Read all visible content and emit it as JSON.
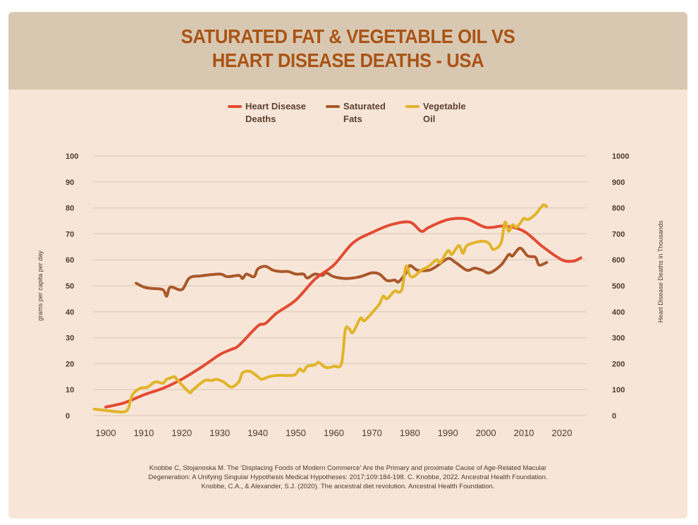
{
  "header": {
    "title_line1": "SATURATED FAT & VEGETABLE OIL VS",
    "title_line2": "HEART DISEASE DEATHS - USA"
  },
  "colors": {
    "heart_disease": "#e34a33",
    "saturated_fats": "#a9582a",
    "vegetable_oil": "#e2b42a",
    "title": "#a95417",
    "header_bg": "#d9c8b1",
    "card_bg": "#f7e6d7",
    "grid": "#e0d0c0"
  },
  "legend": [
    {
      "label": "Heart Disease\nDeaths",
      "series": "heart_disease"
    },
    {
      "label": "Saturated\nFats",
      "series": "saturated_fats"
    },
    {
      "label": "Vegetable\nOil",
      "series": "vegetable_oil"
    }
  ],
  "source": {
    "line1": "Knobbe C, Stojanoska M. The ‘Displacing Foods of Modern Commerce’ Are the Primary and proximate Cause of Age-Related Macular",
    "line2": "Degeneration: A Unifying Singular Hypothesis Medical Hypotheses: 2017;109:184-198. C. Knobbe, 2022. Ancestral Health Foundation.",
    "line3": "Knobbe, C.A., & Alexander, S.J. (2020). The ancestral diet revolution. Ancestral Health Foundation."
  },
  "chart_data": {
    "type": "line",
    "title": "SATURATED FAT & VEGETABLE OIL VS HEART DISEASE DEATHS - USA",
    "xlabel": "",
    "ylabel": "grams per capita per day",
    "y2label": "Heart Disease Deaths in Thousands",
    "xlim": [
      1897,
      2026
    ],
    "ylim": [
      0,
      100
    ],
    "y2lim": [
      0,
      1000
    ],
    "grid": true,
    "legend_position": "top-center",
    "x_ticks": [
      "1900",
      "1910",
      "1920",
      "1930",
      "1940",
      "1950",
      "1960",
      "1970",
      "1980",
      "1990",
      "2000",
      "2010",
      "2020"
    ],
    "y_ticks": [
      "0",
      "10",
      "20",
      "30",
      "40",
      "50",
      "60",
      "70",
      "80",
      "90",
      "100"
    ],
    "y2_ticks": [
      "0",
      "100",
      "200",
      "300",
      "400",
      "500",
      "600",
      "700",
      "800",
      "900",
      "1000"
    ],
    "series": [
      {
        "name": "Heart Disease Deaths",
        "key": "heart_disease",
        "axis": "right",
        "x": [
          1900,
          1905,
          1910,
          1915,
          1920,
          1925,
          1930,
          1933,
          1935,
          1940,
          1942,
          1945,
          1950,
          1955,
          1960,
          1965,
          1970,
          1975,
          1980,
          1983,
          1985,
          1990,
          1995,
          2000,
          2005,
          2010,
          2015,
          2020,
          2023,
          2025
        ],
        "values": [
          33,
          50,
          80,
          105,
          140,
          185,
          235,
          255,
          270,
          345,
          355,
          395,
          445,
          525,
          580,
          665,
          705,
          735,
          745,
          710,
          725,
          755,
          757,
          725,
          730,
          710,
          650,
          600,
          595,
          608
        ]
      },
      {
        "name": "Saturated Fats",
        "key": "saturated_fats",
        "axis": "left",
        "x": [
          1908,
          1910,
          1912,
          1915,
          1916,
          1917,
          1920,
          1922,
          1925,
          1930,
          1932,
          1935,
          1936,
          1937,
          1939,
          1940,
          1942,
          1944,
          1946,
          1948,
          1950,
          1952,
          1953,
          1955,
          1957,
          1958,
          1960,
          1963,
          1966,
          1968,
          1970,
          1972,
          1974,
          1976,
          1977,
          1979,
          1980,
          1982,
          1985,
          1987,
          1990,
          1992,
          1995,
          1997,
          1999,
          2001,
          2004,
          2006,
          2007,
          2009,
          2011,
          2013,
          2014,
          2016
        ],
        "values": [
          51,
          49.5,
          49,
          48.5,
          46,
          49.5,
          48.5,
          53,
          53.8,
          54.5,
          53.5,
          54,
          52.8,
          54.5,
          53.5,
          56.5,
          57.5,
          56,
          55.5,
          55.5,
          54.5,
          54.5,
          53,
          54.5,
          54,
          55,
          53.5,
          52.8,
          53.2,
          54,
          55,
          54.5,
          52,
          52.2,
          51.5,
          55,
          57.8,
          56,
          56,
          57.5,
          60.5,
          59,
          56,
          56.8,
          56,
          55,
          58,
          62,
          61.5,
          64.5,
          61.5,
          61,
          58,
          59
        ]
      },
      {
        "name": "Vegetable Oil",
        "key": "vegetable_oil",
        "axis": "left",
        "x": [
          1897,
          1900,
          1903,
          1905,
          1906,
          1907,
          1909,
          1911,
          1913,
          1915,
          1916,
          1917,
          1918,
          1919,
          1922,
          1923,
          1926,
          1928,
          1929,
          1931,
          1933,
          1935,
          1936,
          1938,
          1940,
          1941,
          1943,
          1945,
          1947,
          1949,
          1950,
          1951,
          1952,
          1953,
          1955,
          1956,
          1958,
          1960,
          1962,
          1963,
          1964,
          1965,
          1967,
          1968,
          1970,
          1972,
          1973,
          1974,
          1976,
          1977,
          1978,
          1979,
          1980,
          1981,
          1983,
          1985,
          1987,
          1988,
          1990,
          1991,
          1992,
          1993,
          1994,
          1995,
          1998,
          2000,
          2001,
          2002,
          2004,
          2005,
          2006,
          2007,
          2008,
          2009,
          2010,
          2011,
          2013,
          2015,
          2016
        ],
        "values": [
          2.5,
          2,
          1.5,
          1.5,
          3,
          8,
          10.5,
          11,
          13,
          12.5,
          14,
          14.5,
          15,
          13.5,
          9,
          10,
          13.5,
          13.5,
          14,
          13,
          11,
          13,
          16.5,
          17,
          15,
          14,
          15,
          15.5,
          15.5,
          15.5,
          16,
          18,
          17,
          19,
          19.5,
          20.5,
          18.5,
          19,
          20,
          33,
          33.5,
          32,
          37.5,
          36.5,
          39.5,
          43,
          46,
          45,
          48,
          47.5,
          49,
          57.5,
          54,
          53.5,
          56,
          57.5,
          60,
          59,
          63.5,
          62,
          64,
          65.5,
          62.5,
          65.5,
          67,
          67,
          66,
          64,
          66.5,
          74.5,
          71,
          73.5,
          72.5,
          74,
          76,
          75.5,
          77.5,
          81,
          80.5
        ]
      }
    ]
  }
}
